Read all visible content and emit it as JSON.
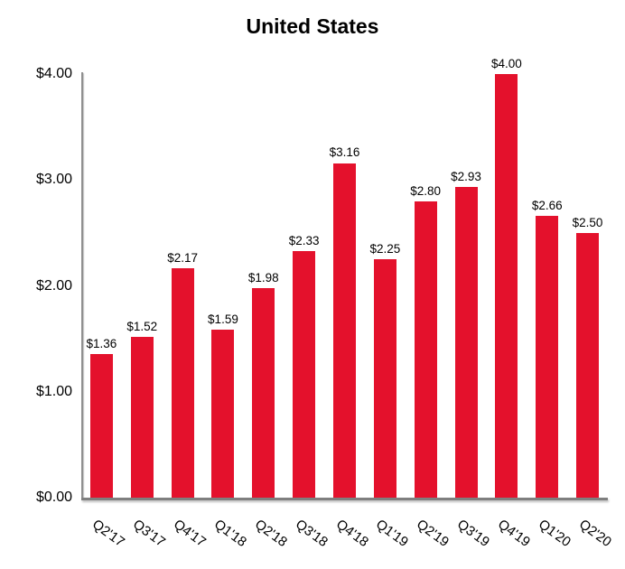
{
  "chart_data": {
    "type": "bar",
    "title": "United States",
    "categories": [
      "Q2'17",
      "Q3'17",
      "Q4'17",
      "Q1'18",
      "Q2'18",
      "Q3'18",
      "Q4'18",
      "Q1'19",
      "Q2'19",
      "Q3'19",
      "Q4'19",
      "Q1'20",
      "Q2'20"
    ],
    "values": [
      1.36,
      1.52,
      2.17,
      1.59,
      1.98,
      2.33,
      3.16,
      2.25,
      2.8,
      2.93,
      4.0,
      2.66,
      2.5
    ],
    "value_labels": [
      "$1.36",
      "$1.52",
      "$2.17",
      "$1.59",
      "$1.98",
      "$2.33",
      "$3.16",
      "$2.25",
      "$2.80",
      "$2.93",
      "$4.00",
      "$2.66",
      "$2.50"
    ],
    "xlabel": "",
    "ylabel": "",
    "ylim": [
      0,
      4
    ],
    "y_ticks": [
      {
        "value": 4,
        "label": "$4.00"
      },
      {
        "value": 3,
        "label": "$3.00"
      },
      {
        "value": 2,
        "label": "$2.00"
      },
      {
        "value": 1,
        "label": "$1.00"
      },
      {
        "value": 0,
        "label": "$0.00"
      }
    ],
    "bar_color": "#E4112C",
    "axis_color": "#7F7F7F",
    "grid": false,
    "legend": false
  }
}
